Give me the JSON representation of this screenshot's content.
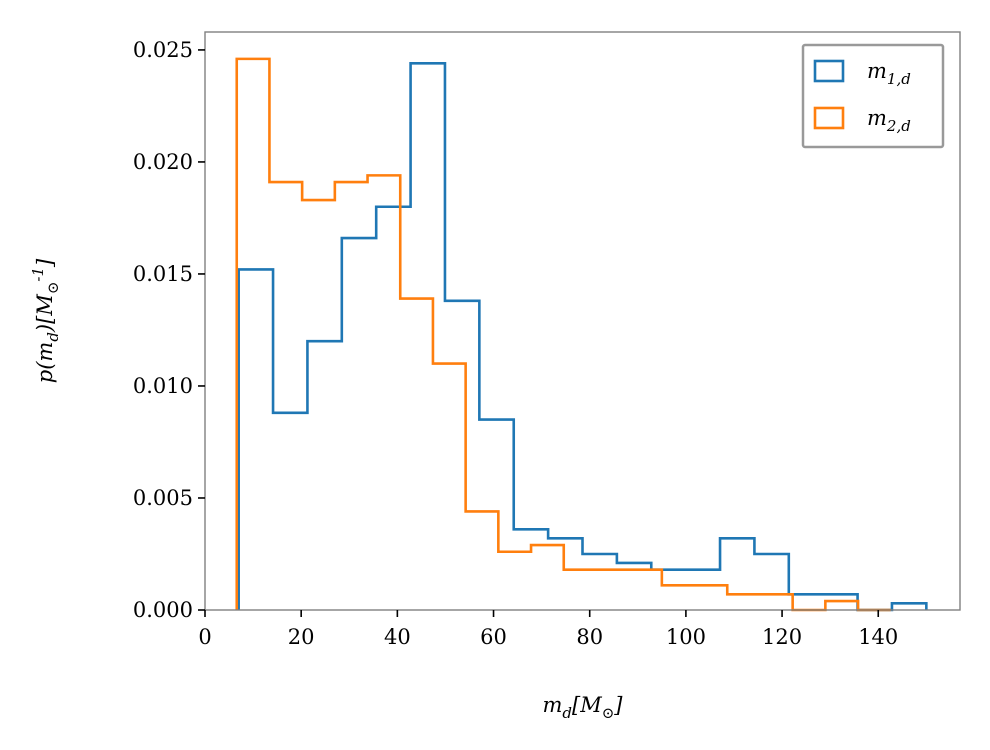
{
  "chart_data": {
    "type": "histogram",
    "xlabel": "m_d[M_⊙]",
    "ylabel": "p(m_d)[M_⊙^-1]",
    "xlim": [
      0,
      157
    ],
    "ylim": [
      0,
      0.0258
    ],
    "grid": false,
    "legend_position": "top-right",
    "x_ticks": [
      0,
      20,
      40,
      60,
      80,
      100,
      120,
      140
    ],
    "x_tick_labels": [
      "0",
      "20",
      "40",
      "60",
      "80",
      "100",
      "120",
      "140"
    ],
    "y_ticks": [
      0,
      0.005,
      0.01,
      0.015,
      0.02,
      0.025
    ],
    "y_tick_labels": [
      "0.000",
      "0.005",
      "0.010",
      "0.015",
      "0.020",
      "0.025"
    ],
    "series": [
      {
        "name": "m_1,d",
        "color": "#1f77b4",
        "bin_edges": [
          7.0,
          14.15,
          21.3,
          28.45,
          35.6,
          42.75,
          49.9,
          57.05,
          64.2,
          71.35,
          78.5,
          85.65,
          92.8,
          99.95,
          107.1,
          114.25,
          121.4,
          128.55,
          135.7,
          142.85,
          150.0
        ],
        "values": [
          0.0152,
          0.0088,
          0.012,
          0.0166,
          0.018,
          0.0244,
          0.0138,
          0.0085,
          0.0036,
          0.0032,
          0.0025,
          0.0021,
          0.0018,
          0.0018,
          0.0032,
          0.0025,
          0.0007,
          0.0007,
          0.0,
          0.0003
        ]
      },
      {
        "name": "m_2,d",
        "color": "#ff7f0e",
        "bin_edges": [
          6.6,
          13.4,
          20.2,
          27.0,
          33.8,
          40.6,
          47.4,
          54.2,
          61.0,
          67.8,
          74.6,
          81.4,
          88.2,
          95.0,
          101.8,
          108.6,
          115.4,
          122.2,
          129.0,
          135.8,
          142.6
        ],
        "values": [
          0.0246,
          0.0191,
          0.0183,
          0.0191,
          0.0194,
          0.0139,
          0.011,
          0.0044,
          0.0026,
          0.0029,
          0.0018,
          0.0018,
          0.0018,
          0.0011,
          0.0011,
          0.0007,
          0.0007,
          0.0,
          0.0004,
          0.0
        ]
      }
    ]
  }
}
